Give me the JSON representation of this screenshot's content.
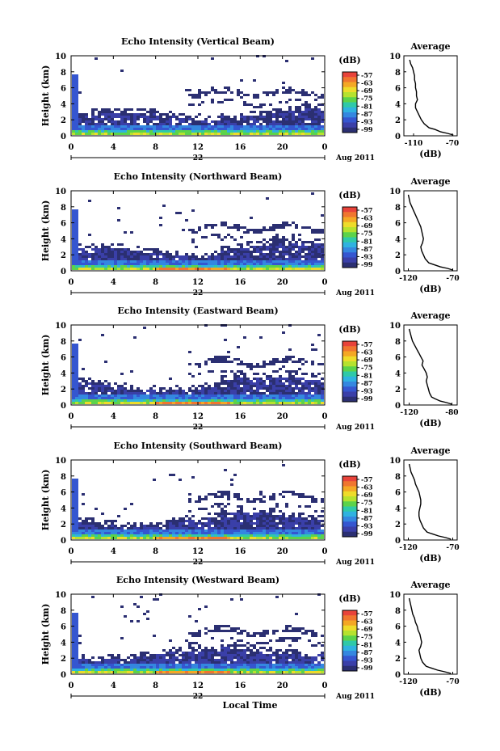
{
  "figure": {
    "xlabel": "Local Time",
    "colorbar_unit": "(dB)",
    "colorbar_ticks": [
      "-57",
      "-63",
      "-69",
      "-75",
      "-81",
      "-87",
      "-93",
      "-99"
    ],
    "colorbar_colors": [
      "#e8433a",
      "#f0762f",
      "#f4a825",
      "#eedc2a",
      "#b6e22e",
      "#5cd34a",
      "#2fc9a8",
      "#2fb2e0",
      "#3487e0",
      "#3556d0",
      "#3a3fa8",
      "#2b2f72"
    ],
    "date_label": "Aug 2011",
    "day_label": "22",
    "profile_title": "Average",
    "profile_xlabel": "(dB)"
  },
  "chart_data": [
    {
      "type": "heatmap",
      "title": "Echo Intensity (Vertical Beam)",
      "ylabel": "Height (km)",
      "x_ticks": [
        "0",
        "4",
        "8",
        "12",
        "16",
        "20",
        "0"
      ],
      "y_ticks": [
        "0",
        "2",
        "4",
        "6",
        "8",
        "10"
      ],
      "xlim": [
        0,
        24
      ],
      "ylim": [
        0,
        10
      ],
      "profile": {
        "x_ticks": [
          "-110",
          "-70"
        ],
        "xlim": [
          -120,
          -65
        ],
        "heights": [
          0.1,
          0.3,
          0.5,
          0.8,
          1.0,
          1.5,
          2.0,
          2.5,
          3.0,
          3.5,
          4.0,
          4.5,
          5.0,
          5.5,
          6.0,
          6.5,
          7.0,
          7.5,
          8.0,
          8.5,
          9.0,
          9.5
        ],
        "values": [
          -69,
          -75,
          -82,
          -88,
          -94,
          -99,
          -102,
          -104,
          -106,
          -108,
          -108,
          -106,
          -107,
          -107,
          -108,
          -108,
          -109,
          -109,
          -110,
          -111,
          -113,
          -114
        ]
      }
    },
    {
      "type": "heatmap",
      "title": "Echo Intensity (Northward Beam)",
      "ylabel": "Height (km)",
      "x_ticks": [
        "0",
        "4",
        "8",
        "12",
        "16",
        "20",
        "0"
      ],
      "y_ticks": [
        "0",
        "2",
        "4",
        "6",
        "8",
        "10"
      ],
      "xlim": [
        0,
        24
      ],
      "ylim": [
        0,
        10
      ],
      "profile": {
        "x_ticks": [
          "-120",
          "-70"
        ],
        "xlim": [
          -125,
          -65
        ],
        "heights": [
          0.1,
          0.3,
          0.5,
          0.8,
          1.0,
          1.5,
          2.0,
          2.5,
          3.0,
          3.5,
          4.0,
          4.5,
          5.0,
          5.5,
          6.0,
          6.5,
          7.0,
          7.5,
          8.0,
          8.5,
          9.0,
          9.5
        ],
        "values": [
          -70,
          -76,
          -84,
          -92,
          -97,
          -101,
          -103,
          -105,
          -106,
          -104,
          -103,
          -104,
          -105,
          -106,
          -108,
          -110,
          -112,
          -114,
          -116,
          -118,
          -119,
          -120
        ]
      }
    },
    {
      "type": "heatmap",
      "title": "Echo Intensity (Eastward Beam)",
      "ylabel": "Height (km)",
      "x_ticks": [
        "0",
        "4",
        "8",
        "12",
        "16",
        "20",
        "0"
      ],
      "y_ticks": [
        "0",
        "2",
        "4",
        "6",
        "8",
        "10"
      ],
      "xlim": [
        0,
        24
      ],
      "ylim": [
        0,
        10
      ],
      "profile": {
        "x_ticks": [
          "-120",
          "-80"
        ],
        "xlim": [
          -125,
          -75
        ],
        "heights": [
          0.1,
          0.3,
          0.5,
          0.8,
          1.0,
          1.5,
          2.0,
          2.5,
          3.0,
          3.5,
          4.0,
          4.5,
          5.0,
          5.5,
          6.0,
          6.5,
          7.0,
          7.5,
          8.0,
          8.5,
          9.0,
          9.5
        ],
        "values": [
          -80,
          -85,
          -91,
          -96,
          -99,
          -101,
          -102,
          -103,
          -104,
          -103,
          -104,
          -106,
          -108,
          -107,
          -109,
          -111,
          -113,
          -115,
          -117,
          -118,
          -119,
          -120
        ]
      }
    },
    {
      "type": "heatmap",
      "title": "Echo Intensity (Southward Beam)",
      "ylabel": "Height (km)",
      "x_ticks": [
        "0",
        "4",
        "8",
        "12",
        "16",
        "20",
        "0"
      ],
      "y_ticks": [
        "0",
        "2",
        "4",
        "6",
        "8",
        "10"
      ],
      "xlim": [
        0,
        24
      ],
      "ylim": [
        0,
        10
      ],
      "profile": {
        "x_ticks": [
          "-120",
          "-70"
        ],
        "xlim": [
          -125,
          -65
        ],
        "heights": [
          0.1,
          0.3,
          0.5,
          0.8,
          1.0,
          1.5,
          2.0,
          2.5,
          3.0,
          3.5,
          4.0,
          4.5,
          5.0,
          5.5,
          6.0,
          6.5,
          7.0,
          7.5,
          8.0,
          8.5,
          9.0,
          9.5
        ],
        "values": [
          -72,
          -78,
          -86,
          -94,
          -99,
          -103,
          -105,
          -107,
          -108,
          -108,
          -107,
          -106,
          -106,
          -107,
          -108,
          -110,
          -112,
          -113,
          -115,
          -117,
          -118,
          -119
        ]
      }
    },
    {
      "type": "heatmap",
      "title": "Echo Intensity (Westward Beam)",
      "ylabel": "Height (km)",
      "x_ticks": [
        "0",
        "4",
        "8",
        "12",
        "16",
        "20",
        "0"
      ],
      "y_ticks": [
        "0",
        "2",
        "4",
        "6",
        "8",
        "10"
      ],
      "xlim": [
        0,
        24
      ],
      "ylim": [
        0,
        10
      ],
      "profile": {
        "x_ticks": [
          "-120",
          "-70"
        ],
        "xlim": [
          -125,
          -65
        ],
        "heights": [
          0.1,
          0.3,
          0.5,
          0.8,
          1.0,
          1.5,
          2.0,
          2.5,
          3.0,
          3.5,
          4.0,
          4.5,
          5.0,
          5.5,
          6.0,
          6.5,
          7.0,
          7.5,
          8.0,
          8.5,
          9.0,
          9.5
        ],
        "values": [
          -72,
          -79,
          -87,
          -95,
          -100,
          -104,
          -106,
          -107,
          -108,
          -106,
          -105,
          -106,
          -107,
          -109,
          -110,
          -112,
          -113,
          -115,
          -116,
          -117,
          -118,
          -119
        ]
      }
    }
  ]
}
